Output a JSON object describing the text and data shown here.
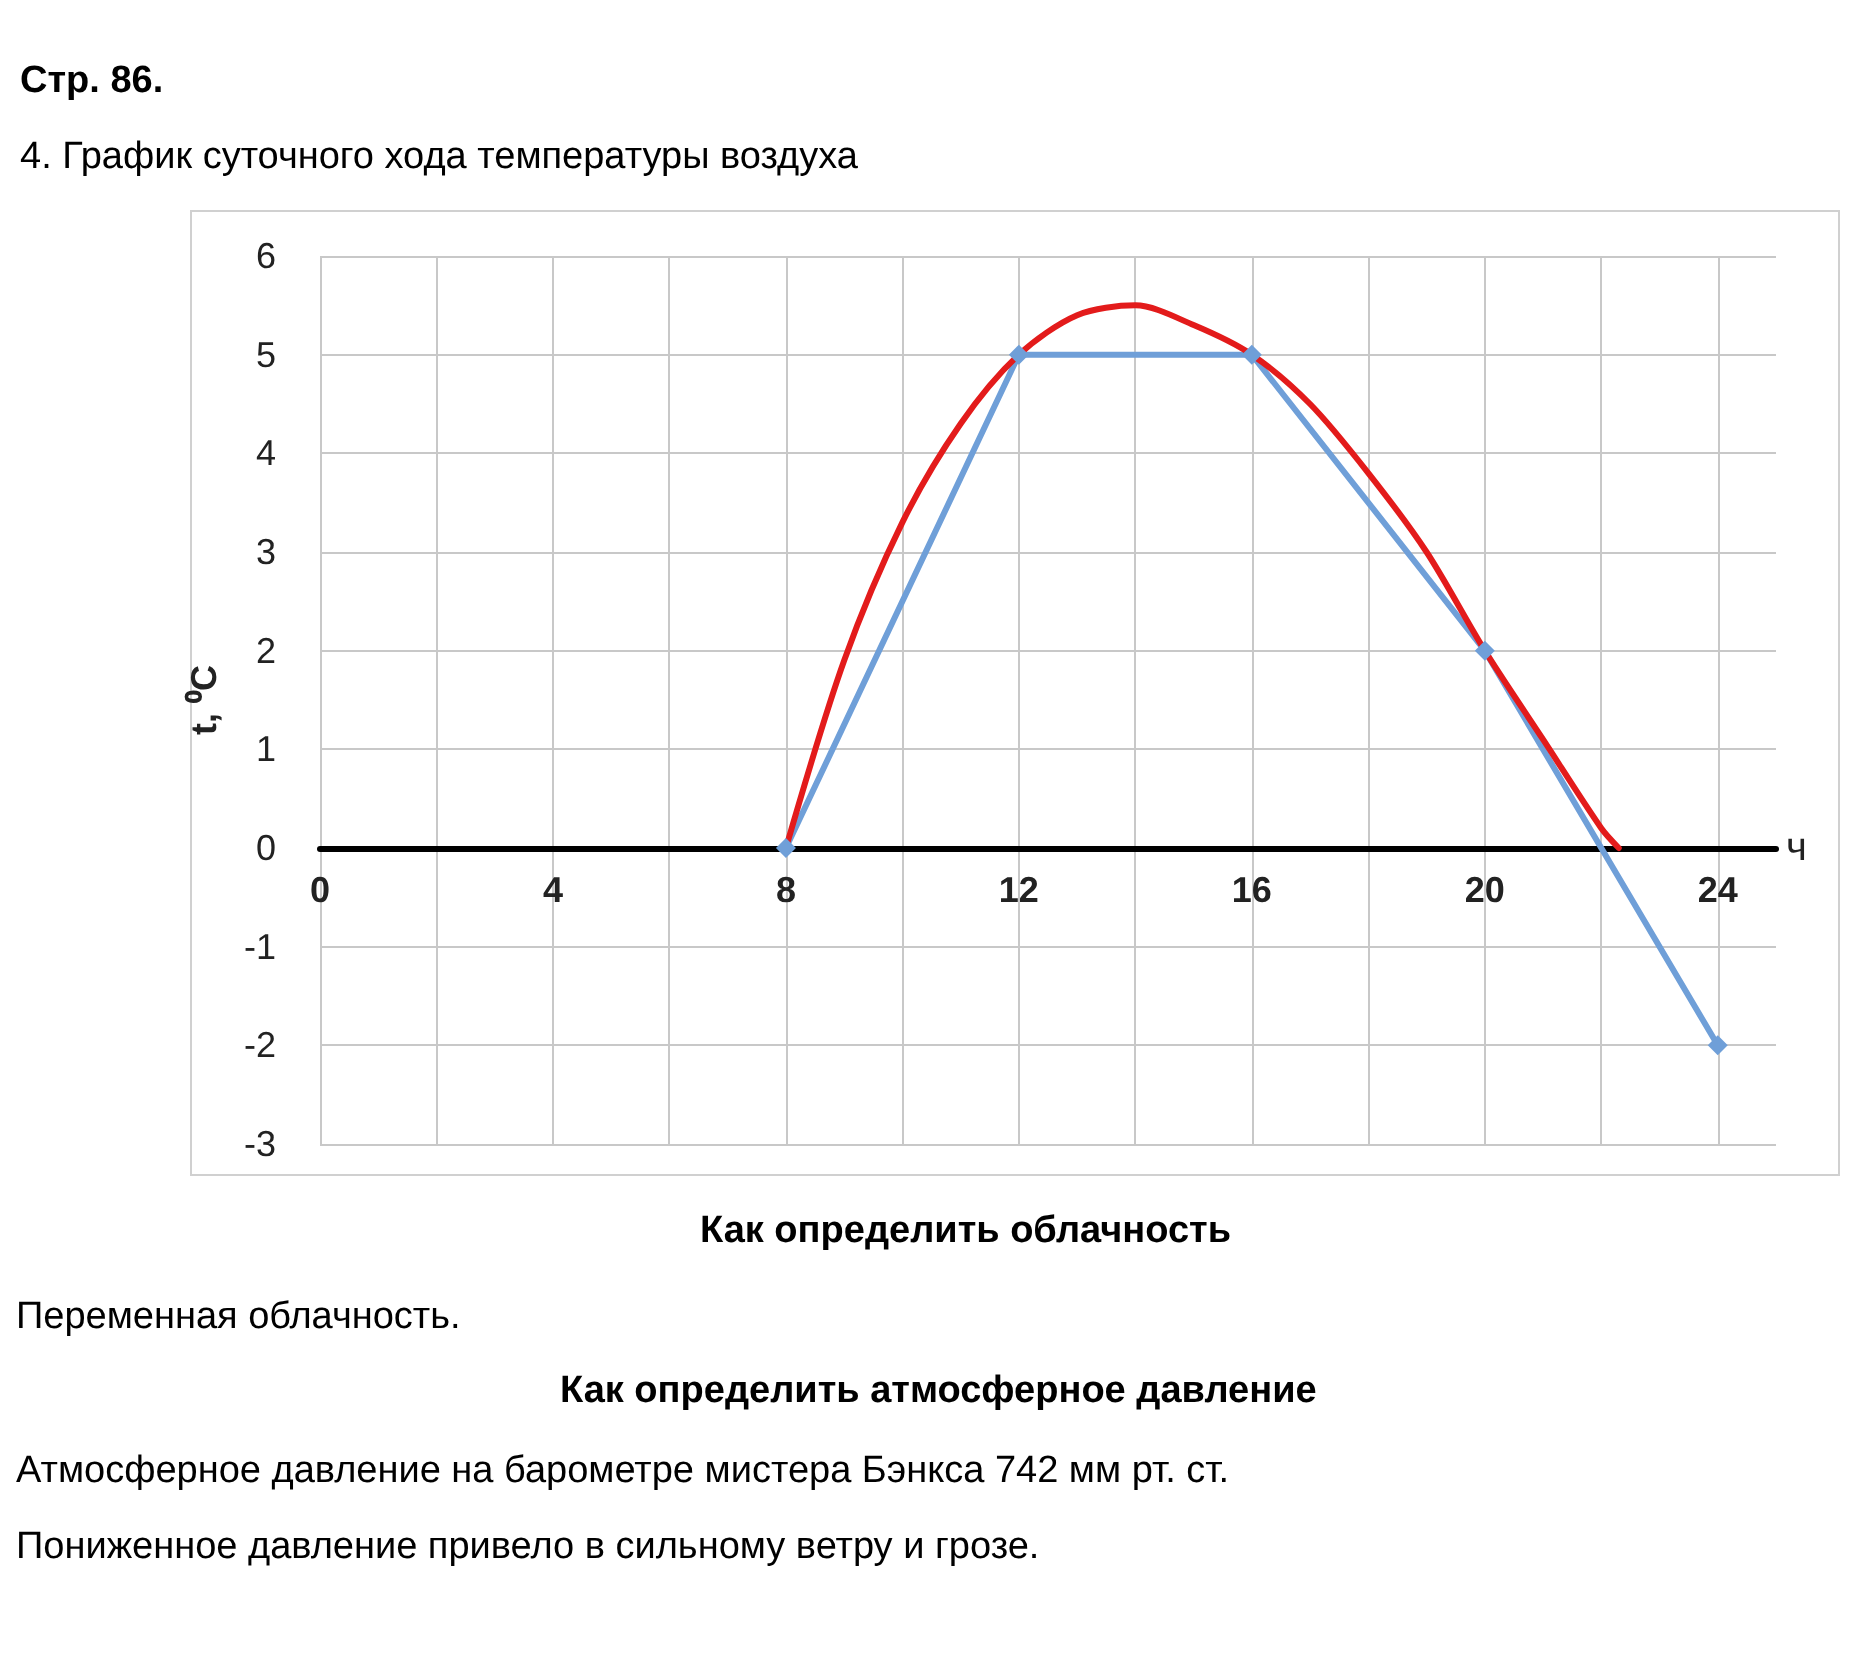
{
  "chart_data": {
    "type": "line",
    "title": "4. График суточного хода температуры воздуха",
    "subtitle": "Стр. 86.",
    "ylabel": "t, ⁰C",
    "xlabel": "ч",
    "xlim": [
      0,
      25
    ],
    "xticks": [
      0,
      {
        "value": 2,
        "label": null
      },
      4,
      {
        "value": 6,
        "label": null
      },
      8,
      {
        "value": 10,
        "label": null
      },
      12,
      {
        "value": 14,
        "label": null
      },
      16,
      {
        "value": 18,
        "label": null
      },
      20,
      {
        "value": 22,
        "label": null
      },
      24
    ],
    "ylim": [
      -3,
      6
    ],
    "yticks": [
      -3,
      -2,
      -1,
      0,
      1,
      2,
      3,
      4,
      5,
      6
    ],
    "grid": true,
    "series": [
      {
        "color": "#6f9fd8",
        "marker": "diamond",
        "x": [
          8,
          12,
          16,
          20,
          24
        ],
        "values": [
          0,
          5,
          5,
          2,
          -2
        ]
      },
      {
        "color": "#e31b1b",
        "marker": "none",
        "x": [
          8,
          9,
          10,
          11,
          12,
          13,
          14,
          15,
          16,
          17,
          18,
          19,
          20,
          21,
          22,
          22.3
        ],
        "values": [
          0,
          1.9,
          3.3,
          4.3,
          5.0,
          5.4,
          5.5,
          5.3,
          5.0,
          4.5,
          3.8,
          3.0,
          2.0,
          1.1,
          0.2,
          0
        ]
      }
    ],
    "annotations": [
      "Как определить облачность",
      "Переменная облачность.",
      "Как определить атмосферное давление",
      "Атмосферное давление на барометре мистера Бэнкса 742 мм рт. ст.",
      "Пониженное давление привело в сильному ветру и грозе."
    ]
  }
}
